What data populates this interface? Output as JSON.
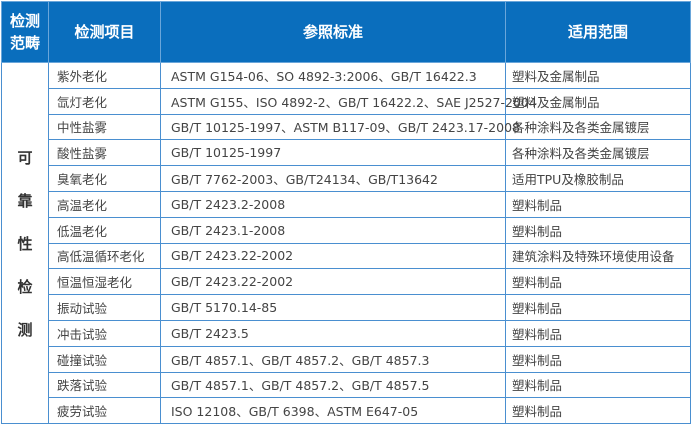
{
  "table": {
    "headers": [
      "检测\n范畴",
      "检测项目",
      "参照标准",
      "适用范围"
    ],
    "category": [
      "可",
      "靠",
      "性",
      "检",
      "测"
    ],
    "rows": [
      {
        "item": "紫外老化",
        "standard": "ASTM G154-06、SO 4892-3:2006、GB/T 16422.3",
        "scope": "塑料及金属制品"
      },
      {
        "item": "氙灯老化",
        "standard": "ASTM G155、ISO 4892-2、GB/T 16422.2、SAE J2527-2004",
        "scope": "塑料及金属制品"
      },
      {
        "item": "中性盐雾",
        "standard": "GB/T 10125-1997、ASTM B117-09、GB/T 2423.17-2008",
        "scope": "各种涂料及各类金属镀层"
      },
      {
        "item": "酸性盐雾",
        "standard": "GB/T 10125-1997",
        "scope": "各种涂料及各类金属镀层"
      },
      {
        "item": "臭氧老化",
        "standard": "GB/T 7762-2003、GB/T24134、GB/T13642",
        "scope": "适用TPU及橡胶制品"
      },
      {
        "item": "高温老化",
        "standard": "GB/T 2423.2-2008",
        "scope": "塑料制品"
      },
      {
        "item": "低温老化",
        "standard": "GB/T 2423.1-2008",
        "scope": "塑料制品"
      },
      {
        "item": "高低温循环老化",
        "standard": "GB/T 2423.22-2002",
        "scope": "建筑涂料及特殊环境使用设备"
      },
      {
        "item": "恒温恒湿老化",
        "standard": "GB/T 2423.22-2002",
        "scope": "塑料制品"
      },
      {
        "item": "振动试验",
        "standard": "GB/T 5170.14-85",
        "scope": "塑料制品"
      },
      {
        "item": "冲击试验",
        "standard": "GB/T 2423.5",
        "scope": "塑料制品"
      },
      {
        "item": "碰撞试验",
        "standard": "GB/T 4857.1、GB/T 4857.2、GB/T 4857.3",
        "scope": "塑料制品"
      },
      {
        "item": "跌落试验",
        "standard": "GB/T 4857.1、GB/T 4857.2、GB/T 4857.5",
        "scope": "塑料制品"
      },
      {
        "item": "疲劳试验",
        "standard": "ISO 12108、GB/T 6398、ASTM E647-05",
        "scope": "塑料制品"
      }
    ]
  },
  "colors": {
    "header_bg": "#0a6ebd",
    "border": "#4a8fd0"
  }
}
